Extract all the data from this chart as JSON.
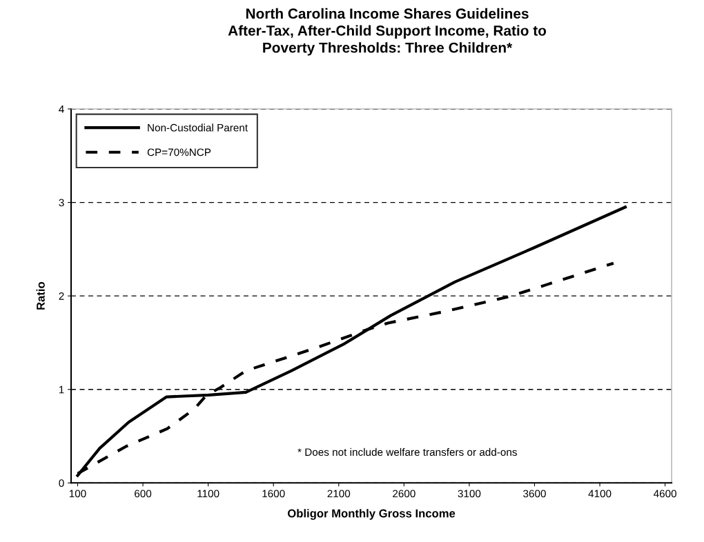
{
  "chart_data": {
    "type": "line",
    "title": "North Carolina Income Shares Guidelines\nAfter-Tax, After-Child Support Income, Ratio to\nPoverty Thresholds: Three Children*",
    "xlabel": "Obligor Monthly Gross Income",
    "ylabel": "Ratio",
    "xlim": [
      50,
      4650
    ],
    "xticks": [
      100,
      600,
      1100,
      1600,
      2100,
      2600,
      3100,
      3600,
      4100,
      4600
    ],
    "ylim": [
      0,
      4
    ],
    "yticks": [
      0,
      1,
      2,
      3,
      4
    ],
    "grid": "y",
    "legend": "top left",
    "series": [
      {
        "name": "Non-Custodial Parent",
        "color": "#000000",
        "line_style": "solid",
        "x": [
          100,
          269,
          491,
          781,
          1104,
          1389,
          1738,
          2145,
          2498,
          2990,
          3587,
          4295
        ],
        "values": [
          0.08,
          0.37,
          0.65,
          0.92,
          0.94,
          0.97,
          1.2,
          1.49,
          1.79,
          2.15,
          2.51,
          2.95
        ]
      },
      {
        "name": "CP=70%NCP",
        "color": "#000000",
        "line_style": "dashed",
        "x": [
          100,
          470,
          787,
          993,
          1088,
          1194,
          1389,
          1917,
          2319,
          2477,
          2900,
          3397,
          3692,
          4205
        ],
        "values": [
          0.1,
          0.39,
          0.58,
          0.79,
          0.94,
          1.02,
          1.2,
          1.44,
          1.64,
          1.71,
          1.83,
          1.99,
          2.12,
          2.35
        ]
      }
    ],
    "annotations": [
      "* Does not include welfare transfers or add-ons"
    ]
  }
}
